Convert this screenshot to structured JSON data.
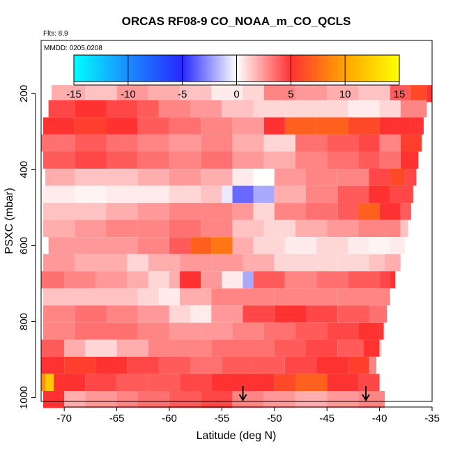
{
  "chart_data": {
    "type": "heatmap",
    "title": "ORCAS RF08-9 CO_NOAA_m_CO_QCLS",
    "annotations": [
      "Flts: 8,9",
      "MMDD: 0205,0208"
    ],
    "xlabel": "Latitude (deg N)",
    "ylabel": "PSXC (mbar)",
    "xlim": [
      -72.2,
      -35
    ],
    "ylim": [
      1010,
      60
    ],
    "y_reversed": true,
    "x_ticks": [
      "-70",
      "-65",
      "-60",
      "-55",
      "-50",
      "-45",
      "-40",
      "-35"
    ],
    "x_tick_values": [
      -70,
      -65,
      -60,
      -55,
      -50,
      -45,
      -40,
      -35
    ],
    "y_ticks": [
      "200",
      "400",
      "600",
      "800",
      "1000"
    ],
    "y_tick_values": [
      200,
      400,
      600,
      800,
      1000
    ],
    "colorbar": {
      "ticks": [
        "-15",
        "-10",
        "-5",
        "0",
        "5",
        "10",
        "15"
      ],
      "tick_values": [
        -15,
        -10,
        -5,
        0,
        5,
        10,
        15
      ],
      "range": [
        -15,
        15
      ]
    },
    "arrows_at_latitude": [
      -53,
      -41.3
    ],
    "rows": [
      {
        "p": 200,
        "x0": -71.2,
        "x1": -35.0,
        "cells": [
          [
            -71.2,
            2
          ],
          [
            -68,
            1.5
          ],
          [
            -65,
            2.5
          ],
          [
            -62,
            2
          ],
          [
            -59,
            1.5
          ],
          [
            -56,
            0.5
          ],
          [
            -53,
            1
          ],
          [
            -51,
            3
          ],
          [
            -48,
            2.5
          ],
          [
            -45,
            2
          ],
          [
            -42,
            1.5
          ],
          [
            -39,
            4
          ],
          [
            -37,
            6
          ],
          [
            -35.5,
            5
          ]
        ]
      },
      {
        "p": 240,
        "x0": -71.5,
        "x1": -35.5,
        "cells": [
          [
            -71.5,
            4.5
          ],
          [
            -69,
            5
          ],
          [
            -66,
            4.5
          ],
          [
            -63,
            4
          ],
          [
            -61,
            3
          ],
          [
            -58,
            2.5
          ],
          [
            -55,
            1.5
          ],
          [
            -52,
            1
          ],
          [
            -49,
            1
          ],
          [
            -46,
            1
          ],
          [
            -43,
            0.5
          ],
          [
            -40,
            1
          ],
          [
            -38,
            3
          ]
        ]
      },
      {
        "p": 285,
        "x0": -72.0,
        "x1": -35.8,
        "cells": [
          [
            -72,
            5
          ],
          [
            -69,
            5.5
          ],
          [
            -66,
            5
          ],
          [
            -63,
            4
          ],
          [
            -60,
            3.5
          ],
          [
            -57,
            3
          ],
          [
            -54,
            2.5
          ],
          [
            -51,
            5
          ],
          [
            -49,
            7
          ],
          [
            -46,
            7
          ],
          [
            -43,
            6
          ],
          [
            -40,
            5
          ],
          [
            -37,
            5
          ]
        ]
      },
      {
        "p": 330,
        "x0": -72.2,
        "x1": -36.0,
        "cells": [
          [
            -72.2,
            3.5
          ],
          [
            -69,
            4
          ],
          [
            -66,
            3.5
          ],
          [
            -63,
            3
          ],
          [
            -60,
            2.5
          ],
          [
            -57,
            3
          ],
          [
            -54,
            2
          ],
          [
            -51,
            1
          ],
          [
            -48,
            3.5
          ],
          [
            -45,
            4
          ],
          [
            -42,
            4.5
          ],
          [
            -40,
            3
          ],
          [
            -38,
            5.5
          ]
        ]
      },
      {
        "p": 375,
        "x0": -72.0,
        "x1": -36.3,
        "cells": [
          [
            -72,
            4
          ],
          [
            -69,
            4.5
          ],
          [
            -66,
            4
          ],
          [
            -63,
            3.5
          ],
          [
            -60,
            3
          ],
          [
            -57,
            3.5
          ],
          [
            -54,
            2.5
          ],
          [
            -51,
            2
          ],
          [
            -48,
            3
          ],
          [
            -45,
            3.5
          ],
          [
            -42,
            4
          ],
          [
            -40,
            3.5
          ],
          [
            -38,
            5
          ]
        ]
      },
      {
        "p": 420,
        "x0": -71.8,
        "x1": -36.5,
        "cells": [
          [
            -71.8,
            2
          ],
          [
            -69,
            1.5
          ],
          [
            -66,
            1.5
          ],
          [
            -63,
            2
          ],
          [
            -60,
            2.5
          ],
          [
            -57,
            2
          ],
          [
            -54,
            0.5
          ],
          [
            -52,
            0
          ],
          [
            -50,
            2.5
          ],
          [
            -47,
            3
          ],
          [
            -44,
            3
          ],
          [
            -41,
            4.5
          ],
          [
            -39,
            6
          ],
          [
            -37.5,
            4.5
          ]
        ]
      },
      {
        "p": 465,
        "x0": -72.0,
        "x1": -36.8,
        "cells": [
          [
            -72,
            0.5
          ],
          [
            -69,
            0.3
          ],
          [
            -66,
            0.5
          ],
          [
            -63,
            0.5
          ],
          [
            -60,
            1
          ],
          [
            -57,
            1.5
          ],
          [
            -55,
            -0.5
          ],
          [
            -54,
            -3.5
          ],
          [
            -52,
            -2
          ],
          [
            -50,
            2
          ],
          [
            -47,
            3
          ],
          [
            -44,
            4
          ],
          [
            -41,
            5
          ],
          [
            -39,
            4.5
          ]
        ]
      },
      {
        "p": 510,
        "x0": -72.0,
        "x1": -37.0,
        "cells": [
          [
            -72,
            1.5
          ],
          [
            -69,
            1.5
          ],
          [
            -66,
            2
          ],
          [
            -63,
            2.5
          ],
          [
            -60,
            3
          ],
          [
            -57,
            3
          ],
          [
            -54,
            2.5
          ],
          [
            -52,
            1
          ],
          [
            -50,
            3
          ],
          [
            -47,
            3.5
          ],
          [
            -44,
            4
          ],
          [
            -42,
            7
          ],
          [
            -40,
            5
          ],
          [
            -38,
            4
          ]
        ]
      },
      {
        "p": 555,
        "x0": -72.0,
        "x1": -37.3,
        "cells": [
          [
            -72,
            2
          ],
          [
            -69,
            2.5
          ],
          [
            -66,
            3
          ],
          [
            -63,
            3
          ],
          [
            -60,
            3.5
          ],
          [
            -57,
            3
          ],
          [
            -54,
            1.5
          ],
          [
            -51,
            1
          ],
          [
            -48,
            2
          ],
          [
            -45,
            2.5
          ],
          [
            -42,
            3
          ],
          [
            -39.5,
            3
          ],
          [
            -38,
            1.5
          ]
        ]
      },
      {
        "p": 600,
        "x0": -71.5,
        "x1": -37.6,
        "cells": [
          [
            -71.5,
            2.5
          ],
          [
            -69,
            2.5
          ],
          [
            -66,
            2.5
          ],
          [
            -63,
            3
          ],
          [
            -60,
            4
          ],
          [
            -58,
            7
          ],
          [
            -56,
            8
          ],
          [
            -54,
            2
          ],
          [
            -52,
            1
          ],
          [
            -49,
            0.5
          ],
          [
            -46,
            1
          ],
          [
            -43,
            0.5
          ],
          [
            -41,
            0.3
          ],
          [
            -39,
            0.5
          ]
        ]
      },
      {
        "p": 645,
        "x0": -72.0,
        "x1": -38.0,
        "cells": [
          [
            -72,
            2.5
          ],
          [
            -69,
            2
          ],
          [
            -66,
            2
          ],
          [
            -64,
            1
          ],
          [
            -62,
            2
          ],
          [
            -59,
            2.5
          ],
          [
            -56,
            2.5
          ],
          [
            -53,
            2
          ],
          [
            -50,
            1
          ],
          [
            -47,
            1
          ],
          [
            -44,
            1
          ],
          [
            -41,
            1.5
          ],
          [
            -39.5,
            2
          ]
        ]
      },
      {
        "p": 690,
        "x0": -72.2,
        "x1": -38.5,
        "cells": [
          [
            -72.2,
            3.5
          ],
          [
            -70,
            3
          ],
          [
            -67,
            2.5
          ],
          [
            -64,
            2
          ],
          [
            -62,
            1
          ],
          [
            -60,
            2
          ],
          [
            -59,
            5
          ],
          [
            -57,
            2.5
          ],
          [
            -55,
            0.5
          ],
          [
            -53,
            -2
          ],
          [
            -52,
            4
          ],
          [
            -49,
            3
          ],
          [
            -46,
            3.5
          ],
          [
            -43,
            4
          ],
          [
            -40,
            4.5
          ],
          [
            -39,
            5
          ]
        ]
      },
      {
        "p": 735,
        "x0": -72.0,
        "x1": -39.0,
        "cells": [
          [
            -72,
            1.5
          ],
          [
            -69,
            1.5
          ],
          [
            -66,
            1.5
          ],
          [
            -63,
            1
          ],
          [
            -61,
            0.5
          ],
          [
            -59,
            2
          ],
          [
            -56,
            3
          ],
          [
            -53,
            3
          ],
          [
            -50,
            3
          ],
          [
            -47,
            3
          ],
          [
            -44,
            3
          ],
          [
            -41,
            3
          ]
        ]
      },
      {
        "p": 780,
        "x0": -72.0,
        "x1": -39.3,
        "cells": [
          [
            -72,
            3
          ],
          [
            -69,
            3.5
          ],
          [
            -66,
            3
          ],
          [
            -63,
            2.5
          ],
          [
            -60,
            1
          ],
          [
            -58,
            0.5
          ],
          [
            -56,
            2.5
          ],
          [
            -53,
            4.5
          ],
          [
            -50,
            5
          ],
          [
            -47,
            4.5
          ],
          [
            -44,
            4
          ],
          [
            -41,
            3.5
          ]
        ]
      },
      {
        "p": 825,
        "x0": -72.0,
        "x1": -39.6,
        "cells": [
          [
            -72,
            3
          ],
          [
            -69,
            3.5
          ],
          [
            -66,
            3.5
          ],
          [
            -63,
            3
          ],
          [
            -60,
            2.5
          ],
          [
            -57,
            2.5
          ],
          [
            -54,
            3
          ],
          [
            -51,
            3.5
          ],
          [
            -48,
            4
          ],
          [
            -45,
            4.5
          ],
          [
            -42,
            5
          ],
          [
            -40,
            5
          ]
        ]
      },
      {
        "p": 870,
        "x0": -72.2,
        "x1": -39.8,
        "cells": [
          [
            -72.2,
            4
          ],
          [
            -70,
            2
          ],
          [
            -68,
            1
          ],
          [
            -65,
            2
          ],
          [
            -62,
            3
          ],
          [
            -59,
            3
          ],
          [
            -56,
            3.5
          ],
          [
            -53,
            3.5
          ],
          [
            -50,
            4
          ],
          [
            -47,
            4.5
          ],
          [
            -44,
            4
          ],
          [
            -41.5,
            5
          ],
          [
            -40,
            1
          ]
        ]
      },
      {
        "p": 915,
        "x0": -72.2,
        "x1": -40.0,
        "cells": [
          [
            -72.2,
            5
          ],
          [
            -70,
            5.5
          ],
          [
            -67,
            5
          ],
          [
            -64,
            4.5
          ],
          [
            -61,
            4
          ],
          [
            -58,
            3.5
          ],
          [
            -55,
            4
          ],
          [
            -52,
            4
          ],
          [
            -49,
            4.5
          ],
          [
            -46,
            5
          ],
          [
            -43,
            5.5
          ],
          [
            -41,
            3
          ],
          [
            -40.3,
            0
          ]
        ]
      },
      {
        "p": 960,
        "x0": -72.2,
        "x1": -40.0,
        "cells": [
          [
            -72.2,
            9
          ],
          [
            -71.8,
            12
          ],
          [
            -71,
            5
          ],
          [
            -68,
            4.5
          ],
          [
            -65,
            4
          ],
          [
            -62,
            4
          ],
          [
            -59,
            4.5
          ],
          [
            -56,
            5
          ],
          [
            -53,
            5
          ],
          [
            -50,
            6
          ],
          [
            -48,
            7
          ],
          [
            -45,
            5
          ],
          [
            -42,
            4.5
          ]
        ]
      },
      {
        "p": 1005,
        "x0": -72.0,
        "x1": -39.5,
        "cells": [
          [
            -72,
            5
          ],
          [
            -70,
            2
          ],
          [
            -68,
            2.5
          ],
          [
            -65,
            3
          ],
          [
            -63,
            3.5
          ],
          [
            -60,
            4
          ],
          [
            -57,
            4.5
          ],
          [
            -54,
            3
          ],
          [
            -51,
            2.5
          ],
          [
            -48,
            2
          ],
          [
            -45,
            2.5
          ],
          [
            -42,
            3
          ]
        ]
      }
    ]
  }
}
